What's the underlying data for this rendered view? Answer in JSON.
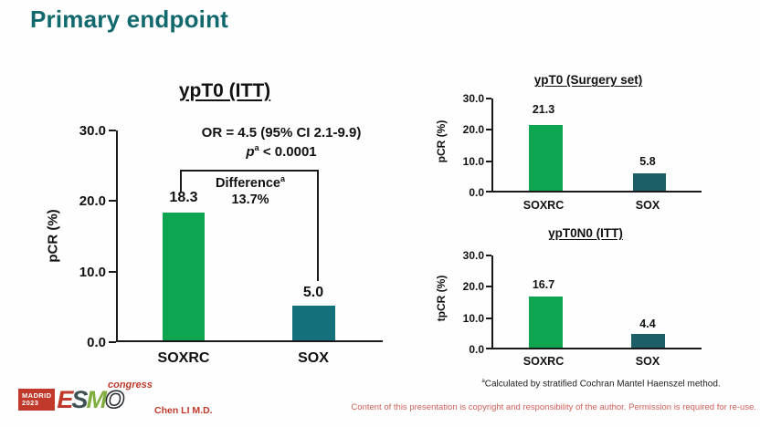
{
  "slide": {
    "title": "Primary endpoint",
    "presenter": "Chen LI M.D.",
    "copyright": "Content of this presentation is copyright and responsibility of the author. Permission is required for re-use.",
    "footnote_sup": "a",
    "footnote_text": "Calculated by stratified Cochran Mantel Haenszel method."
  },
  "logo": {
    "location": "MADRID",
    "year": "2023",
    "letter_e": "E",
    "letter_s": "S",
    "letter_m": "M",
    "letter_o": "O",
    "congress": "congress"
  },
  "colors": {
    "title_teal": "#11696e",
    "red": "#c0392b",
    "copy_red": "#cd5f58"
  },
  "chart_data": [
    {
      "type": "bar",
      "title": "ypT0 (ITT)",
      "ylabel": "pCR (%)",
      "categories": [
        "SOXRC",
        "SOX"
      ],
      "values": [
        18.3,
        5.0
      ],
      "value_labels": [
        "18.3",
        "5.0"
      ],
      "yticks": [
        "0.0",
        "10.0",
        "20.0",
        "30.0"
      ],
      "ylim": [
        0,
        30
      ],
      "colors": [
        "#0ea551",
        "#14707a"
      ],
      "grid": false,
      "annotations": {
        "or_line": "OR = 4.5 (95% CI 2.1-9.9)",
        "p_italic": "p",
        "p_sup": "a",
        "p_rest": " < 0.0001",
        "diff_label": "Difference",
        "diff_sup": "a",
        "diff_value": "13.7%"
      }
    },
    {
      "type": "bar",
      "title": "ypT0 (Surgery set)",
      "ylabel": "pCR (%)",
      "categories": [
        "SOXRC",
        "SOX"
      ],
      "values": [
        21.3,
        5.8
      ],
      "value_labels": [
        "21.3",
        "5.8"
      ],
      "yticks": [
        "0.0",
        "10.0",
        "20.0",
        "30.0"
      ],
      "ylim": [
        0,
        30
      ],
      "colors": [
        "#0ea551",
        "#1d5f66"
      ],
      "grid": false
    },
    {
      "type": "bar",
      "title": "ypT0N0 (ITT)",
      "ylabel": "tpCR (%)",
      "categories": [
        "SOXRC",
        "SOX"
      ],
      "values": [
        16.7,
        4.4
      ],
      "value_labels": [
        "16.7",
        "4.4"
      ],
      "yticks": [
        "0.0",
        "10.0",
        "20.0",
        "30.0"
      ],
      "ylim": [
        0,
        30
      ],
      "colors": [
        "#0ea551",
        "#1d5f66"
      ],
      "grid": false
    }
  ]
}
